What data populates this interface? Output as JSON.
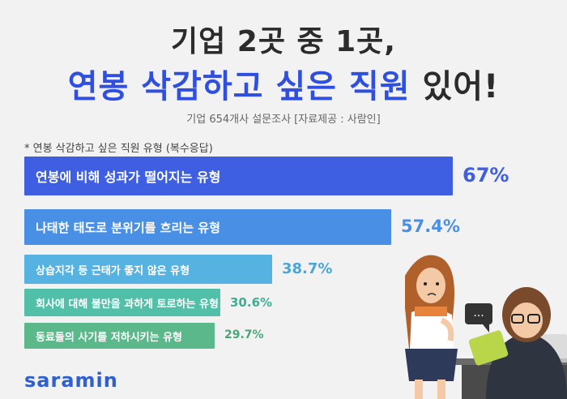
{
  "title_line1": "기업 2곳 중 1곳,",
  "title_line2_highlight": "연봉 삭감하고 싶은 직원",
  "title_line2_tail": "있어!",
  "subtitle": "기업 654개사 설문조사 [자료제공 : 사람인]",
  "note": "* 연봉 삭감하고 싶은 직원 유형 (복수응답)",
  "logo": "saramin",
  "speech_bubble": "...",
  "chart_data": {
    "type": "bar",
    "orientation": "horizontal",
    "categories": [
      "연봉에 비해 성과가 떨어지는 유형",
      "나태한 태도로 분위기를 흐리는 유형",
      "상습지각 등 근태가 좋지 않은 유형",
      "회사에 대해 불만을 과하게 토로하는 유형",
      "동료들의 사기를 저하시키는 유형"
    ],
    "values": [
      67,
      57.4,
      38.7,
      30.6,
      29.7
    ],
    "value_labels": [
      "67%",
      "57.4%",
      "38.7%",
      "30.6%",
      "29.7%"
    ],
    "unit": "%",
    "xlim": [
      0,
      100
    ],
    "colors": [
      "#3f5fe2",
      "#4a8fe6",
      "#56b2e0",
      "#52bfa8",
      "#5ab88a"
    ],
    "label_colors": [
      "#3f5fe2",
      "#4a8fe6",
      "#4aa6d6",
      "#3fae95",
      "#4aa67a"
    ],
    "grid": false,
    "legend": "none"
  }
}
